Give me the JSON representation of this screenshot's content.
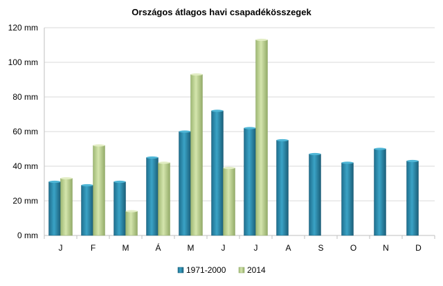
{
  "chart_data": {
    "type": "bar",
    "title": "Országos átlagos havi csapadékösszegek",
    "categories": [
      "J",
      "F",
      "M",
      "Á",
      "M",
      "J",
      "J",
      "A",
      "S",
      "O",
      "N",
      "D"
    ],
    "series": [
      {
        "name": "1971-2000",
        "color": "#2b8cae",
        "values": [
          31,
          29,
          31,
          45,
          60,
          72,
          62,
          55,
          47,
          42,
          50,
          43
        ]
      },
      {
        "name": "2014",
        "color": "#b5cc8a",
        "values": [
          33,
          52,
          14,
          42,
          93,
          39,
          113,
          null,
          null,
          null,
          null,
          null
        ]
      }
    ],
    "ylim": [
      0,
      120
    ],
    "yticks": [
      0,
      20,
      40,
      60,
      80,
      100,
      120
    ],
    "ytick_labels": [
      "0 mm",
      "20 mm",
      "40 mm",
      "60 mm",
      "80 mm",
      "100 mm",
      "120 mm"
    ],
    "grid": true,
    "legend_position": "bottom"
  }
}
